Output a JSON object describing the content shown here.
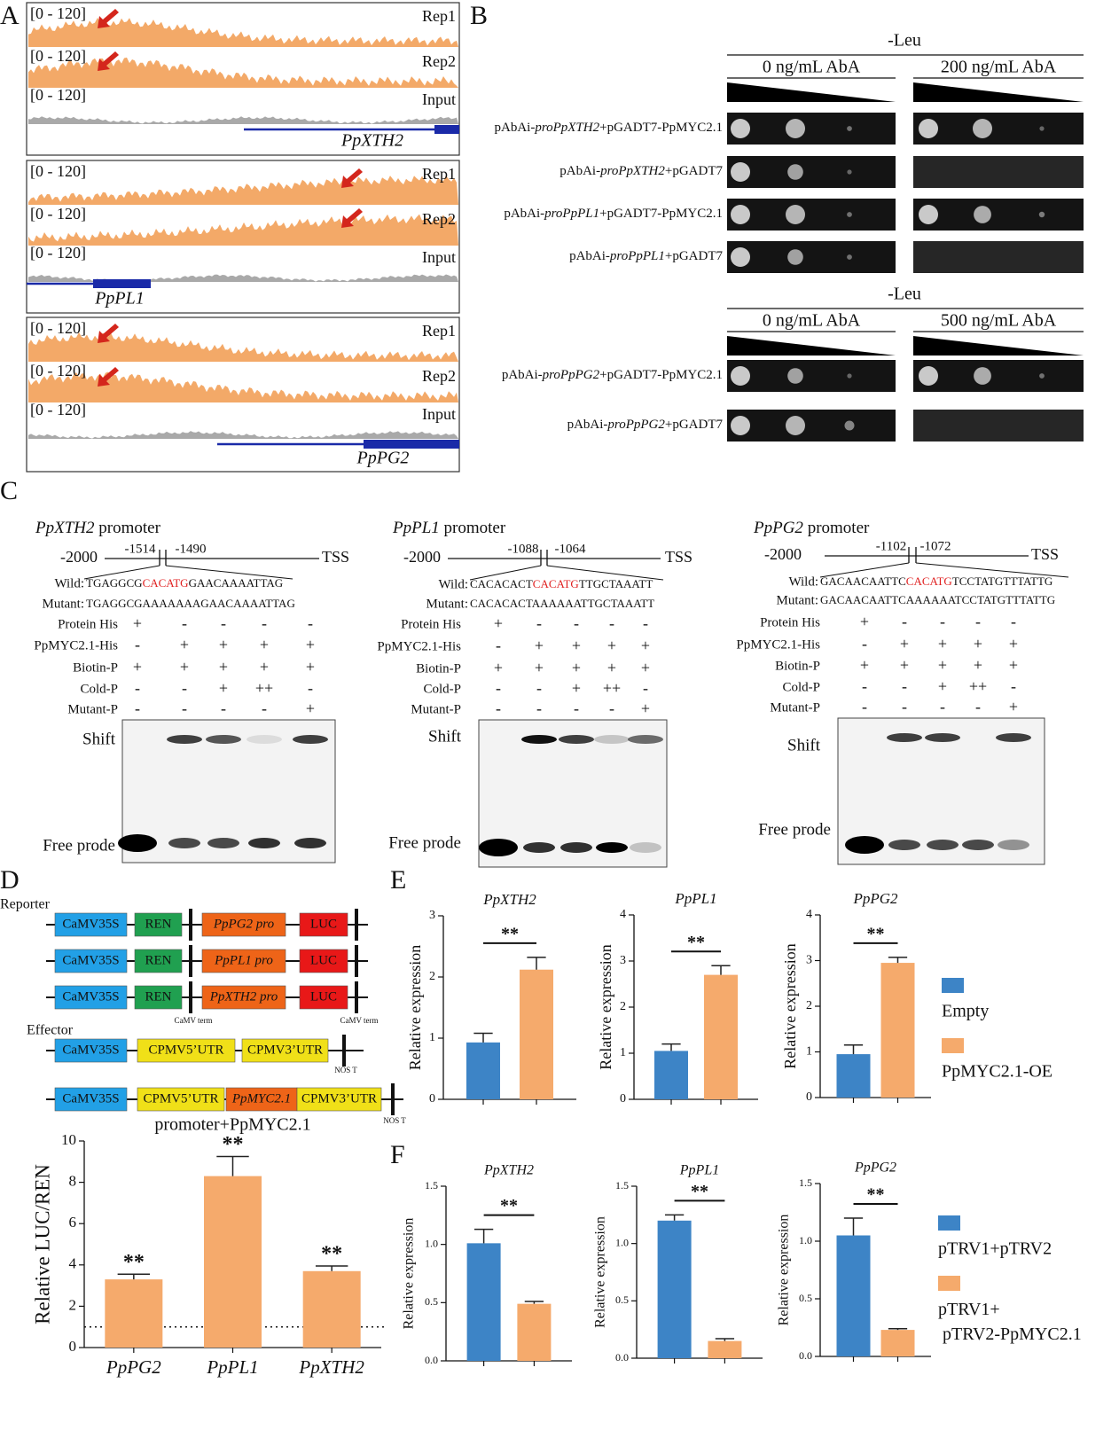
{
  "panel_labels": [
    "A",
    "B",
    "C",
    "D",
    "E",
    "F"
  ],
  "panel_a": {
    "tracks": [
      {
        "gene": "PpXTH2",
        "rows": [
          {
            "range": "[0 - 120]",
            "name": "Rep1"
          },
          {
            "range": "[0 - 120]",
            "name": "Rep2"
          },
          {
            "range": "[0 - 120]",
            "name": "Input"
          }
        ]
      },
      {
        "gene": "PpPL1",
        "rows": [
          {
            "range": "[0 - 120]",
            "name": "Rep1"
          },
          {
            "range": "[0 - 120]",
            "name": "Rep2"
          },
          {
            "range": "[0 - 120]",
            "name": "Input"
          }
        ]
      },
      {
        "gene": "PpPG2",
        "rows": [
          {
            "range": "[0 - 120]",
            "name": "Rep1"
          },
          {
            "range": "[0 - 120]",
            "name": "Rep2"
          },
          {
            "range": "[0 - 120]",
            "name": "Input"
          }
        ]
      }
    ]
  },
  "panel_b": {
    "groups": [
      {
        "medium": "-Leu",
        "conditions": [
          "0 ng/mL AbA",
          "200 ng/mL AbA"
        ],
        "rows": [
          [
            "pAbAi-",
            "proPpXTH2",
            "+pGADT7-PpMYC2.1"
          ],
          [
            "pAbAi-",
            "proPpXTH2",
            "+pGADT7"
          ],
          [
            "pAbAi-",
            "proPpPL1",
            "+pGADT7-PpMYC2.1"
          ],
          [
            "pAbAi-",
            "proPpPL1",
            "+pGADT7"
          ]
        ]
      },
      {
        "medium": "-Leu",
        "conditions": [
          "0 ng/mL AbA",
          "500 ng/mL AbA"
        ],
        "rows": [
          [
            "pAbAi-",
            "proPpPG2",
            "+pGADT7-PpMYC2.1"
          ],
          [
            "pAbAi-",
            "proPpPG2",
            "+pGADT7"
          ]
        ]
      }
    ]
  },
  "panel_c": {
    "blocks": [
      {
        "gene": "PpXTH2",
        "suffix": " promoter",
        "start": "-2000",
        "site": [
          "-1514",
          "-1490"
        ],
        "end": "TSS",
        "wild_label": "Wild:",
        "wild": [
          "TGAGGCG",
          "CACATG",
          "GAACAAAATTAG"
        ],
        "mutant_label": "Mutant:",
        "mutant": "TGAGGCGAAAAAAAGAACAAAATTAG",
        "rows": [
          {
            "label": "Protein His",
            "marks": [
              "+",
              "-",
              "-",
              "-",
              "-"
            ]
          },
          {
            "label": "PpMYC2.1-His",
            "marks": [
              "-",
              "+",
              "+",
              "+",
              "+"
            ]
          },
          {
            "label": "Biotin-P",
            "marks": [
              "+",
              "+",
              "+",
              "+",
              "+"
            ]
          },
          {
            "label": "Cold-P",
            "marks": [
              "-",
              "-",
              "+",
              "++",
              "-"
            ]
          },
          {
            "label": "Mutant-P",
            "marks": [
              "-",
              "-",
              "-",
              "-",
              "+"
            ]
          }
        ],
        "shift": "Shift",
        "free": "Free prode"
      },
      {
        "gene": "PpPL1",
        "suffix": " promoter",
        "start": "-2000",
        "site": [
          "-1088",
          "-1064"
        ],
        "end": "TSS",
        "wild_label": "Wild:",
        "wild": [
          "CACACACT",
          "CACATG",
          "TTGCTAAATT"
        ],
        "mutant_label": "Mutant:",
        "mutant": "CACACACTAAAAAATTGCTAAATT",
        "rows": [
          {
            "label": "Protein His",
            "marks": [
              "+",
              "-",
              "-",
              "-",
              "-"
            ]
          },
          {
            "label": "PpMYC2.1-His",
            "marks": [
              "-",
              "+",
              "+",
              "+",
              "+"
            ]
          },
          {
            "label": "Biotin-P",
            "marks": [
              "+",
              "+",
              "+",
              "+",
              "+"
            ]
          },
          {
            "label": "Cold-P",
            "marks": [
              "-",
              "-",
              "+",
              "++",
              "-"
            ]
          },
          {
            "label": "Mutant-P",
            "marks": [
              "-",
              "-",
              "-",
              "-",
              "+"
            ]
          }
        ],
        "shift": "Shift",
        "free": "Free prode"
      },
      {
        "gene": "PpPG2",
        "suffix": " promoter",
        "start": "-2000",
        "site": [
          "-1102",
          "-1072"
        ],
        "end": "TSS",
        "wild_label": "Wild:",
        "wild": [
          "GACAACAATTC",
          "CACATG",
          "TCCTATGTTTATTG"
        ],
        "mutant_label": "Mutant:",
        "mutant": "GACAACAATTCAAAAAATCCTATGTTTATTG",
        "rows": [
          {
            "label": "Protein His",
            "marks": [
              "+",
              "-",
              "-",
              "-",
              "-"
            ]
          },
          {
            "label": "PpMYC2.1-His",
            "marks": [
              "-",
              "+",
              "+",
              "+",
              "+"
            ]
          },
          {
            "label": "Biotin-P",
            "marks": [
              "+",
              "+",
              "+",
              "+",
              "+"
            ]
          },
          {
            "label": "Cold-P",
            "marks": [
              "-",
              "-",
              "+",
              "++",
              "-"
            ]
          },
          {
            "label": "Mutant-P",
            "marks": [
              "-",
              "-",
              "-",
              "-",
              "+"
            ]
          }
        ],
        "shift": "Shift",
        "free": "Free prode"
      }
    ]
  },
  "panel_d": {
    "reporter_label": "Reporter",
    "effector_label": "Effector",
    "reporters": [
      [
        "CaMV35S",
        "REN",
        "PpPG2 pro",
        "LUC"
      ],
      [
        "CaMV35S",
        "REN",
        "PpPL1 pro",
        "LUC"
      ],
      [
        "CaMV35S",
        "REN",
        "PpXTH2 pro",
        "LUC"
      ]
    ],
    "terminators": [
      "CaMV term",
      "CaMV term"
    ],
    "effectors": [
      [
        "CaMV35S",
        "CPMV5’UTR",
        "CPMV3’UTR"
      ],
      [
        "CaMV35S",
        "CPMV5’UTR",
        "PpMYC2.1",
        "CPMV3’UTR"
      ]
    ],
    "nos": [
      "NOS T",
      "NOS T"
    ]
  },
  "chart_data": [
    {
      "type": "bar",
      "title": "promoter+PpMYC2.1",
      "ylabel": "Relative LUC/REN",
      "categories": [
        "PpPG2",
        "PpPL1",
        "PpXTH2"
      ],
      "values": [
        3.3,
        8.3,
        3.7
      ],
      "errors": [
        0.25,
        0.95,
        0.25
      ],
      "significance": [
        "**",
        "**",
        "**"
      ],
      "color": "#f5aa6c",
      "ylim": [
        0,
        10
      ],
      "yticks": [
        0,
        2,
        4,
        6,
        8,
        10
      ],
      "reference_line": 1
    },
    {
      "type": "bar",
      "title": "PpXTH2",
      "ylabel": "Relative expression",
      "categories": [
        null
      ],
      "series": [
        {
          "name": "Empty",
          "color": "#3d84c6",
          "values": [
            0.93
          ],
          "errors": [
            0.15
          ]
        },
        {
          "name": "PpMYC2.1-OE",
          "color": "#f5aa6c",
          "values": [
            2.12
          ],
          "errors": [
            0.2
          ]
        }
      ],
      "significance": "**",
      "ylim": [
        0,
        3
      ],
      "yticks": [
        0,
        1,
        2,
        3
      ]
    },
    {
      "type": "bar",
      "title": "PpPL1",
      "ylabel": "Relative expression",
      "categories": [
        null
      ],
      "series": [
        {
          "name": "Empty",
          "color": "#3d84c6",
          "values": [
            1.05
          ],
          "errors": [
            0.15
          ]
        },
        {
          "name": "PpMYC2.1-OE",
          "color": "#f5aa6c",
          "values": [
            2.7
          ],
          "errors": [
            0.2
          ]
        }
      ],
      "significance": "**",
      "ylim": [
        0,
        4
      ],
      "yticks": [
        0,
        1,
        2,
        3,
        4
      ]
    },
    {
      "type": "bar",
      "title": "PpPG2",
      "ylabel": "Relative expression",
      "categories": [
        null
      ],
      "series": [
        {
          "name": "Empty",
          "color": "#3d84c6",
          "values": [
            0.95
          ],
          "errors": [
            0.2
          ]
        },
        {
          "name": "PpMYC2.1-OE",
          "color": "#f5aa6c",
          "values": [
            2.95
          ],
          "errors": [
            0.12
          ]
        }
      ],
      "significance": "**",
      "ylim": [
        0,
        4
      ],
      "yticks": [
        0,
        1,
        2,
        3,
        4
      ],
      "legend": "right"
    },
    {
      "type": "bar",
      "title": "PpXTH2",
      "ylabel": "Relative expression",
      "categories": [
        null
      ],
      "series": [
        {
          "name": "pTRV1+pTRV2",
          "color": "#3d84c6",
          "values": [
            1.01
          ],
          "errors": [
            0.12
          ]
        },
        {
          "name": "pTRV1+ pTRV2-PpMYC2.1",
          "color": "#f5aa6c",
          "values": [
            0.49
          ],
          "errors": [
            0.02
          ]
        }
      ],
      "significance": "**",
      "ylim": [
        0,
        1.5
      ],
      "yticks": [
        {
          "value": 0,
          "label": "0.0"
        },
        {
          "value": 0.5,
          "label": "0.5"
        },
        {
          "value": 1,
          "label": "1.0"
        },
        {
          "value": 1.5,
          "label": "1.5"
        }
      ]
    },
    {
      "type": "bar",
      "title": "PpPL1",
      "ylabel": "Relative expression",
      "categories": [
        null
      ],
      "series": [
        {
          "name": "pTRV1+pTRV2",
          "color": "#3d84c6",
          "values": [
            1.2
          ],
          "errors": [
            0.05
          ]
        },
        {
          "name": "pTRV1+ pTRV2-PpMYC2.1",
          "color": "#f5aa6c",
          "values": [
            0.15
          ],
          "errors": [
            0.02
          ]
        }
      ],
      "significance": "**",
      "ylim": [
        0,
        1.5
      ],
      "yticks": [
        {
          "value": 0,
          "label": "0.0"
        },
        {
          "value": 0.5,
          "label": "0.5"
        },
        {
          "value": 1,
          "label": "1.0"
        },
        {
          "value": 1.5,
          "label": "1.5"
        }
      ]
    },
    {
      "type": "bar",
      "title": "PpPG2",
      "ylabel": "Relative expression",
      "categories": [
        null
      ],
      "series": [
        {
          "name": "pTRV1+pTRV2",
          "color": "#3d84c6",
          "values": [
            1.05
          ],
          "errors": [
            0.15
          ]
        },
        {
          "name": "pTRV1+ pTRV2-PpMYC2.1",
          "color": "#f5aa6c",
          "values": [
            0.23
          ],
          "errors": [
            0.01
          ]
        }
      ],
      "significance": "**",
      "ylim": [
        0,
        1.5
      ],
      "yticks": [
        {
          "value": 0,
          "label": "0.0"
        },
        {
          "value": 0.5,
          "label": "0.5"
        },
        {
          "value": 1,
          "label": "1.0"
        },
        {
          "value": 1.5,
          "label": "1.5"
        }
      ],
      "legend": "right"
    }
  ]
}
